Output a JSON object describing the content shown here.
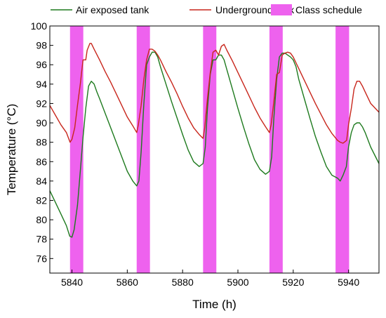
{
  "chart_data": {
    "type": "line",
    "title": "",
    "xlabel": "Time (h)",
    "ylabel": "Temperature (°C)",
    "xlim": [
      5832,
      5951
    ],
    "ylim": [
      74.5,
      100
    ],
    "xticks": [
      5840,
      5860,
      5880,
      5900,
      5920,
      5940
    ],
    "yticks": [
      76,
      78,
      80,
      82,
      84,
      86,
      88,
      90,
      92,
      94,
      96,
      98,
      100
    ],
    "grid": false,
    "legend_position": "top",
    "legend": [
      {
        "label": "Air exposed tank",
        "kind": "line",
        "color": "#1e7a1e"
      },
      {
        "label": "Underground tank",
        "kind": "line",
        "color": "#c8261c"
      },
      {
        "label": "Class schedule",
        "kind": "box",
        "color": "#ee62ee"
      }
    ],
    "class_schedule": [
      [
        5839.3,
        5844.1
      ],
      [
        5863.4,
        5868.2
      ],
      [
        5887.4,
        5892.2
      ],
      [
        5911.4,
        5916.2
      ],
      [
        5935.3,
        5940.2
      ]
    ],
    "series": [
      {
        "name": "Air exposed tank",
        "color": "#1e7a1e",
        "x": [
          5832,
          5834,
          5836,
          5838,
          5839.2,
          5840,
          5840.8,
          5842,
          5843,
          5844,
          5845,
          5846,
          5847,
          5848,
          5849,
          5850,
          5852,
          5854,
          5856,
          5858,
          5860,
          5862,
          5863.4,
          5864.2,
          5865,
          5866,
          5867,
          5868,
          5869,
          5870,
          5871,
          5872,
          5874,
          5876,
          5878,
          5880,
          5882,
          5884,
          5886,
          5887.4,
          5888.2,
          5889,
          5890,
          5891,
          5892,
          5893,
          5894,
          5895,
          5896,
          5898,
          5900,
          5902,
          5904,
          5906,
          5908,
          5910,
          5911.4,
          5912.2,
          5913,
          5914,
          5915,
          5916,
          5917,
          5918,
          5919,
          5920,
          5921,
          5922,
          5924,
          5926,
          5928,
          5930,
          5932,
          5934,
          5936,
          5937,
          5938,
          5939.2,
          5940,
          5941,
          5942,
          5943,
          5944,
          5945,
          5946,
          5948,
          5951
        ],
        "y": [
          83.0,
          81.8,
          80.6,
          79.4,
          78.3,
          78.2,
          79.0,
          81.5,
          85.0,
          88.5,
          91.5,
          93.8,
          94.3,
          94.0,
          93.2,
          92.5,
          91.0,
          89.5,
          88.0,
          86.5,
          85.0,
          84.0,
          83.5,
          84.0,
          87.0,
          92.0,
          96.0,
          96.8,
          97.3,
          97.3,
          96.8,
          95.8,
          94.0,
          92.2,
          90.5,
          88.8,
          87.2,
          86.0,
          85.5,
          85.8,
          87.5,
          91.5,
          95.0,
          96.5,
          96.5,
          97.0,
          97.0,
          96.5,
          95.5,
          93.5,
          91.5,
          89.6,
          87.8,
          86.2,
          85.2,
          84.7,
          85.0,
          86.5,
          90.5,
          94.5,
          96.8,
          97.2,
          97.2,
          97.0,
          96.8,
          96.5,
          95.8,
          94.5,
          92.5,
          90.5,
          88.6,
          87.0,
          85.5,
          84.6,
          84.3,
          84.0,
          84.6,
          85.5,
          87.5,
          89.0,
          89.8,
          90.0,
          90.0,
          89.6,
          89.0,
          87.5,
          85.8
        ]
      },
      {
        "name": "Underground tank",
        "color": "#c8261c",
        "x": [
          5832,
          5834,
          5836,
          5838,
          5839.3,
          5840,
          5841,
          5842,
          5843,
          5844,
          5845,
          5845.5,
          5846.5,
          5847,
          5848,
          5850,
          5852,
          5854,
          5856,
          5858,
          5860,
          5862,
          5863.4,
          5864,
          5865,
          5866,
          5867,
          5868,
          5869,
          5870,
          5871,
          5872,
          5874,
          5876,
          5878,
          5880,
          5882,
          5884,
          5886,
          5887.4,
          5888,
          5889,
          5890,
          5891,
          5892,
          5893,
          5894,
          5895,
          5896,
          5898,
          5900,
          5902,
          5904,
          5906,
          5908,
          5910,
          5911.4,
          5912,
          5913,
          5914,
          5915,
          5916,
          5917,
          5918,
          5919,
          5920,
          5921,
          5922,
          5924,
          5926,
          5928,
          5930,
          5932,
          5934,
          5936,
          5937,
          5938,
          5939.3,
          5940,
          5941,
          5942,
          5943,
          5944,
          5945,
          5946,
          5948,
          5951
        ],
        "y": [
          91.8,
          90.8,
          89.8,
          89.0,
          88.0,
          88.3,
          89.5,
          91.8,
          94.0,
          96.5,
          96.5,
          97.5,
          98.2,
          98.2,
          97.6,
          96.5,
          95.3,
          94.2,
          93.0,
          91.8,
          90.6,
          89.7,
          89.0,
          89.8,
          91.8,
          94.5,
          96.5,
          97.6,
          97.6,
          97.4,
          97.0,
          96.5,
          95.3,
          94.2,
          93.0,
          91.7,
          90.5,
          89.5,
          88.8,
          88.4,
          89.5,
          92.5,
          95.2,
          97.3,
          97.5,
          97.0,
          97.9,
          98.1,
          97.5,
          96.4,
          95.2,
          94.0,
          92.8,
          91.6,
          90.5,
          89.6,
          89.0,
          89.8,
          92.2,
          95.0,
          95.2,
          97.0,
          97.2,
          97.3,
          97.2,
          96.8,
          96.2,
          95.6,
          94.4,
          93.2,
          92.0,
          90.9,
          89.8,
          88.9,
          88.2,
          88.0,
          87.9,
          88.2,
          89.8,
          91.5,
          93.5,
          94.3,
          94.3,
          93.8,
          93.2,
          92.0,
          91.1
        ]
      }
    ]
  }
}
